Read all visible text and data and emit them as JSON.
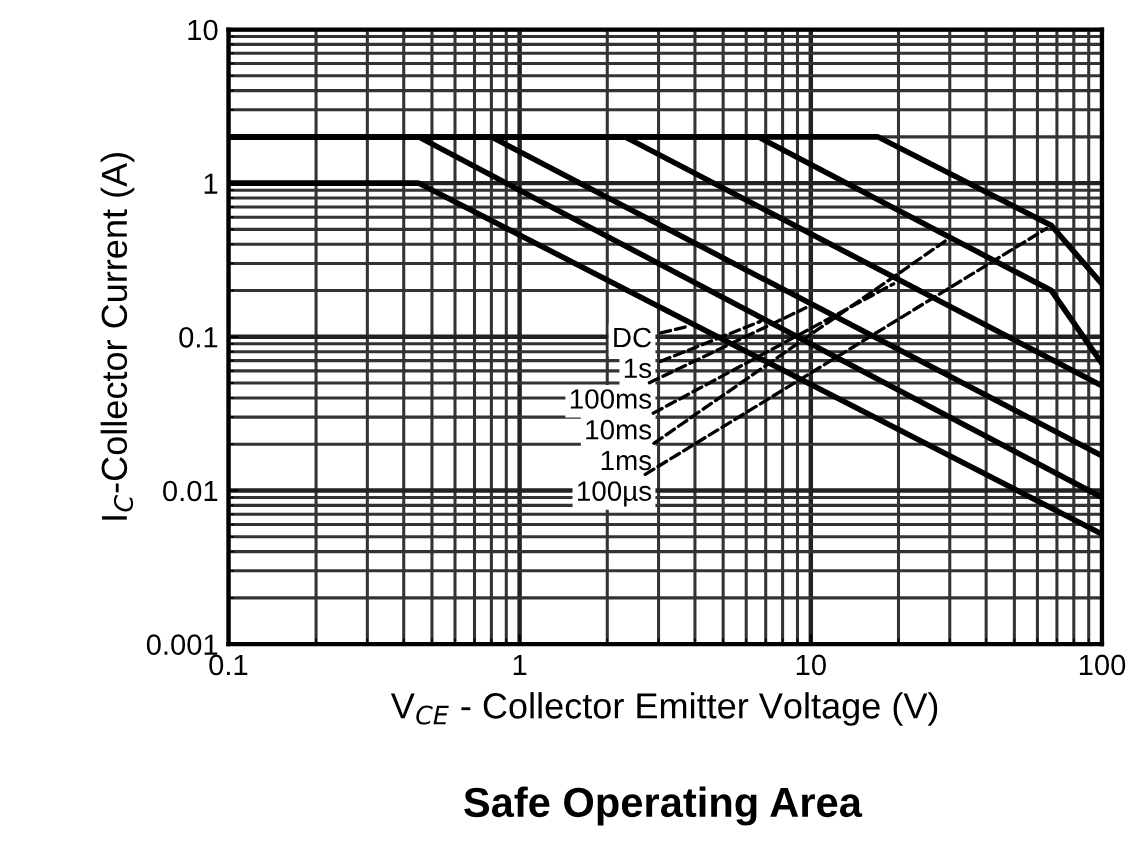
{
  "chart_data": {
    "type": "line",
    "title": "Safe Operating Area",
    "xlabel": "V$_{CE}$ - Collector Emitter Voltage (V)",
    "ylabel": "I$_{C}$-Collector Current (A)",
    "log": "xy",
    "xlim": [
      0.1,
      100
    ],
    "ylim": [
      0.001,
      10
    ],
    "xticks": [
      0.1,
      1,
      10,
      100
    ],
    "yticks": [
      0.001,
      0.01,
      0.1,
      1,
      10
    ],
    "grid": true,
    "marker": "none",
    "line_style": "solid",
    "series": [
      {
        "color": "#000000",
        "x": [
          0.1,
          0.45,
          100
        ],
        "values": [
          1,
          1,
          0.0052
        ]
      },
      {
        "color": "#000000",
        "x": [
          0.1,
          0.45,
          100
        ],
        "values": [
          2,
          2,
          0.009
        ]
      },
      {
        "color": "#000000",
        "x": [
          0.1,
          0.8,
          100
        ],
        "values": [
          2,
          2,
          0.0168
        ]
      },
      {
        "color": "#000000",
        "x": [
          0.1,
          2.3,
          100
        ],
        "values": [
          2,
          2,
          0.048
        ]
      },
      {
        "color": "#000000",
        "x": [
          0.1,
          6.6,
          67,
          100
        ],
        "values": [
          2,
          2,
          0.2,
          0.067
        ]
      },
      {
        "color": "#000000",
        "x": [
          0.1,
          17,
          67,
          100
        ],
        "values": [
          2,
          2,
          0.53,
          0.22
        ]
      }
    ],
    "annotations": [
      {
        "text": "DC",
        "x": 4,
        "y": 0.12
      },
      {
        "text": "1s",
        "x": 7,
        "y": 0.13
      },
      {
        "text": "100ms",
        "x": 10,
        "y": 0.16
      },
      {
        "text": "10ms",
        "x": 20,
        "y": 0.23
      },
      {
        "text": "1ms",
        "x": 30,
        "y": 0.44
      },
      {
        "text": "100µs",
        "x": 67,
        "y": 0.53
      }
    ]
  }
}
